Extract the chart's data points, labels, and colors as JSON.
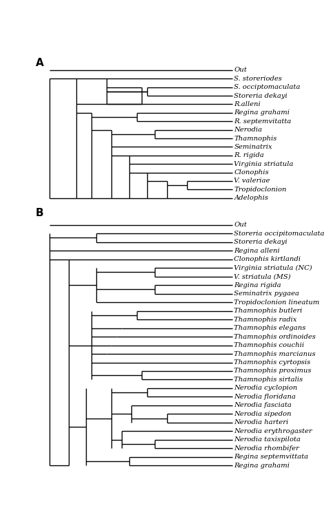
{
  "fig_width": 4.74,
  "fig_height": 7.67,
  "bg_color": "#ffffff",
  "line_color": "#000000",
  "line_width": 1.0,
  "font_size": 7.2,
  "label_A": "A",
  "label_B": "B",
  "treeA_taxa": [
    "Out",
    "S. storeriodes",
    "S. occiptomaculata",
    "Storeria dekayi",
    "R.alleni",
    "Regina grahami",
    "R. septemvitatta",
    "Nerodia",
    "Thamnophis",
    "Seminatrix",
    "R. rigida",
    "Virginia striatula",
    "Clonophis",
    "V. valeriae",
    "Tropidoclonion",
    "Adelophis"
  ],
  "treeB_taxa": [
    "Out",
    "Storeria occipitomaculata",
    "Storeria dekayi",
    "Regina alleni",
    "Clonophis kirtlandi",
    "Virginia striatula (NC)",
    "V. striatula (MS)",
    "Regina rigida",
    "Seminatrix pygaea",
    "Tropidoclonion lineatum",
    "Thamnophis butleri",
    "Thamnophis radix",
    "Thamnophis elegans",
    "Thamnophis ordinoides",
    "Thamnophis couchii",
    "Thamnophis marcianus",
    "Thamnophis cyrtopsis",
    "Thamnophis proximus",
    "Thamnophis sirtalis",
    "Nerodia cyclopion",
    "Nerodia floridana",
    "Nerodia fasciata",
    "Nerodia sipedon",
    "Nerodia harteri",
    "Nerodia erythrogaster",
    "Nerodia taxispilota",
    "Nerodia rhombifer",
    "Regina septemvittata",
    "Regina grahami"
  ]
}
